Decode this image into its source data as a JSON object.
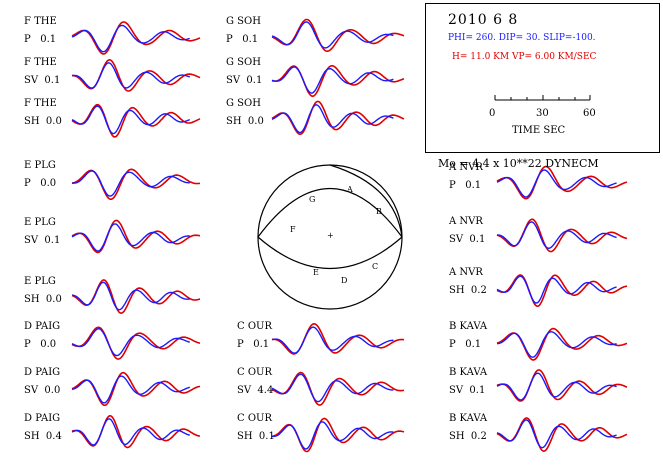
{
  "event": {
    "date": "2010  6  8",
    "params": "PHI= 260. DIP= 30. SLIP=-100.",
    "depth_vp": "H= 11.0 KM  VP= 6.00 KM/SEC",
    "moment": "Mo =  4.4 x 10**22 DYNECM",
    "time_label": "TIME  SEC",
    "time_ticks": [
      "0",
      "30",
      "60"
    ]
  },
  "colors": {
    "observed": "#1a1aff",
    "synthetic": "#e00000",
    "text": "#000000"
  },
  "traces": [
    {
      "station": "F THE",
      "comp": "P",
      "value": "0.1"
    },
    {
      "station": "F THE",
      "comp": "SV",
      "value": "0.1"
    },
    {
      "station": "F THE",
      "comp": "SH",
      "value": "0.0"
    },
    {
      "station": "E PLG",
      "comp": "P",
      "value": "0.0"
    },
    {
      "station": "E PLG",
      "comp": "SV",
      "value": "0.1"
    },
    {
      "station": "E PLG",
      "comp": "SH",
      "value": "0.0"
    },
    {
      "station": "D PAIG",
      "comp": "P",
      "value": "0.0"
    },
    {
      "station": "D PAIG",
      "comp": "SV",
      "value": "0.0"
    },
    {
      "station": "D PAIG",
      "comp": "SH",
      "value": "0.4"
    },
    {
      "station": "G SOH",
      "comp": "P",
      "value": "0.1"
    },
    {
      "station": "G SOH",
      "comp": "SV",
      "value": "0.1"
    },
    {
      "station": "G SOH",
      "comp": "SH",
      "value": "0.0"
    },
    {
      "station": "C OUR",
      "comp": "P",
      "value": "0.1"
    },
    {
      "station": "C OUR",
      "comp": "SV",
      "value": "4.4"
    },
    {
      "station": "C OUR",
      "comp": "SH",
      "value": "0.1"
    },
    {
      "station": "A NVR",
      "comp": "P",
      "value": "0.1"
    },
    {
      "station": "A NVR",
      "comp": "SV",
      "value": "0.1"
    },
    {
      "station": "A NVR",
      "comp": "SH",
      "value": "0.2"
    },
    {
      "station": "B KAVA",
      "comp": "P",
      "value": "0.1"
    },
    {
      "station": "B KAVA",
      "comp": "SV",
      "value": "0.1"
    },
    {
      "station": "B KAVA",
      "comp": "SH",
      "value": "0.2"
    }
  ],
  "beachball_labels": [
    "G",
    "A",
    "B",
    "F",
    "+",
    "E",
    "D",
    "C"
  ]
}
